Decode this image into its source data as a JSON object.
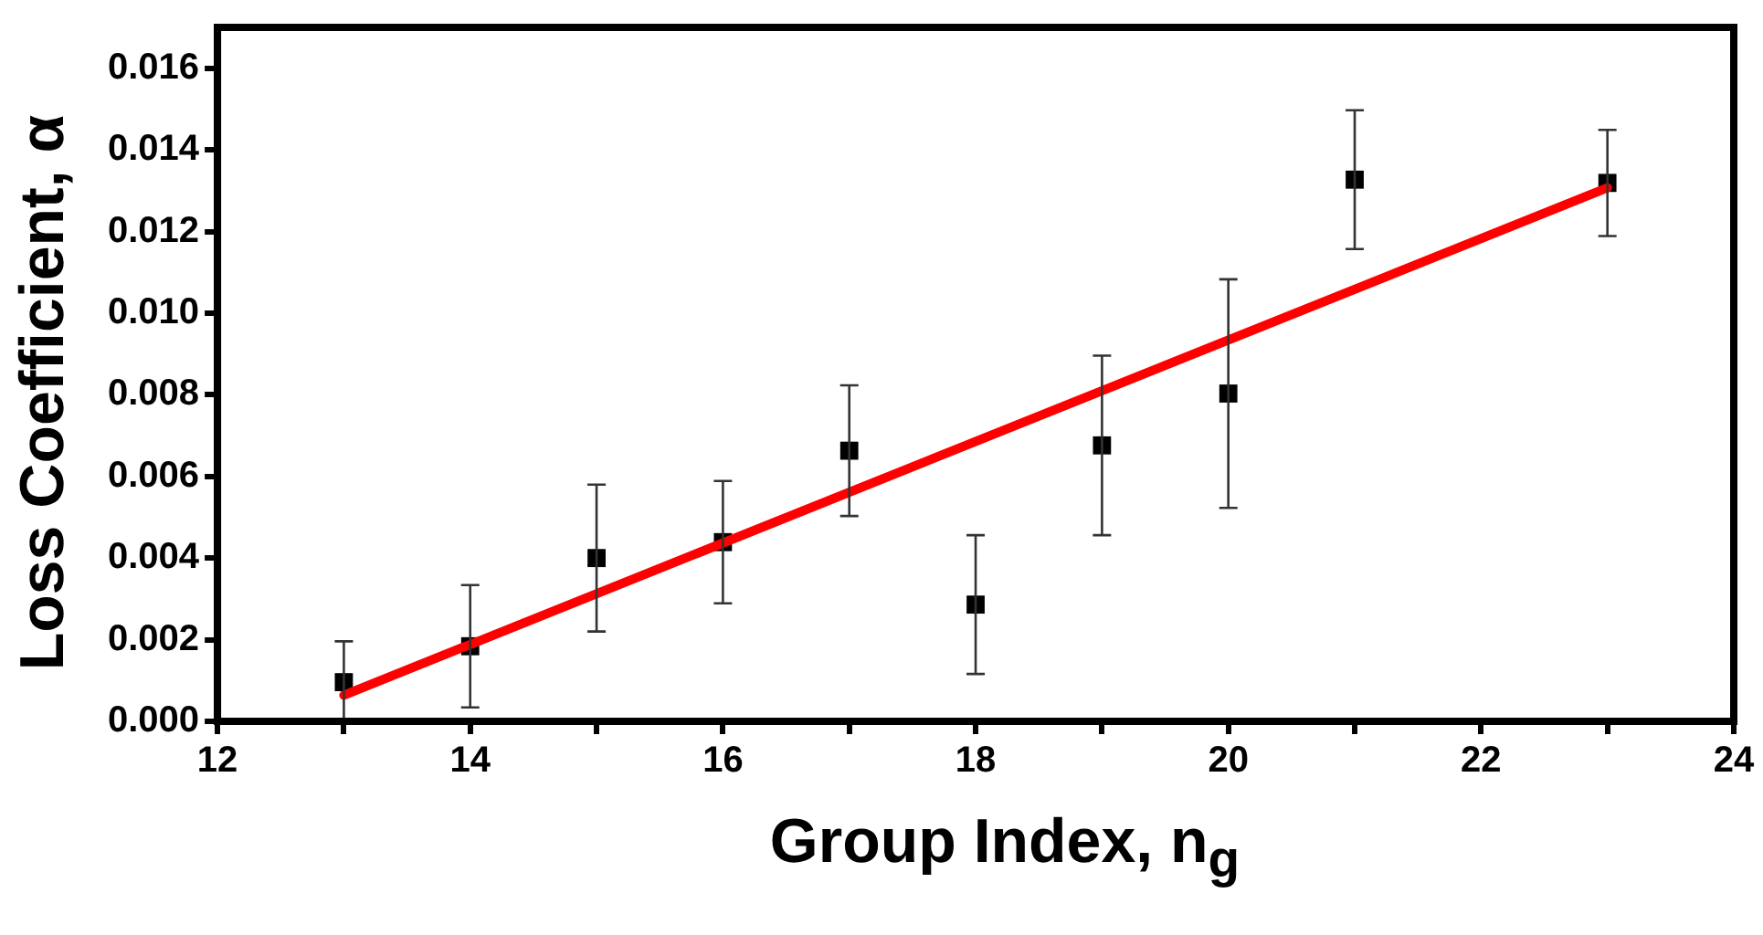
{
  "chart_data": {
    "type": "scatter",
    "xlabel": "Group Index, n$_{g}$",
    "ylabel": "Loss Coefficient, α",
    "marker": "square",
    "grid": false,
    "legend": false,
    "xlim": [
      12,
      24
    ],
    "xticks": [
      12,
      {
        "value": 13,
        "label": null
      },
      14,
      {
        "value": 15,
        "label": null
      },
      16,
      {
        "value": 17,
        "label": null
      },
      18,
      {
        "value": 19,
        "label": null
      },
      20,
      {
        "value": 21,
        "label": null
      },
      22,
      {
        "value": 23,
        "label": null
      },
      24
    ],
    "ylim": [
      0,
      0.017
    ],
    "yticks": [
      {
        "value": 0,
        "label": "0.000"
      },
      {
        "value": 0.002,
        "label": "0.002"
      },
      {
        "value": 0.004,
        "label": "0.004"
      },
      {
        "value": 0.006,
        "label": "0.006"
      },
      {
        "value": 0.008,
        "label": "0.008"
      },
      {
        "value": 0.01,
        "label": "0.010"
      },
      {
        "value": 0.012,
        "label": "0.012"
      },
      {
        "value": 0.014,
        "label": "0.014"
      },
      {
        "value": 0.016,
        "label": "0.016"
      }
    ],
    "series": [
      {
        "type": "scatter",
        "color": "#000000",
        "x": [
          13,
          14,
          15,
          16,
          17,
          18,
          19,
          20,
          21,
          23
        ],
        "values": [
          0.00096,
          0.00184,
          0.004,
          0.00439,
          0.00663,
          0.00286,
          0.00676,
          0.00803,
          0.01327,
          0.01319
        ],
        "errors": [
          0.001,
          0.0015,
          0.0018,
          0.0015,
          0.0016,
          0.0017,
          0.0022,
          0.0028,
          0.0017,
          0.0013
        ]
      },
      {
        "type": "line",
        "color": "#ff0000",
        "line_style": "solid",
        "marker": "none",
        "x": [
          13,
          23
        ],
        "values": [
          0.00064,
          0.01307
        ]
      }
    ]
  }
}
